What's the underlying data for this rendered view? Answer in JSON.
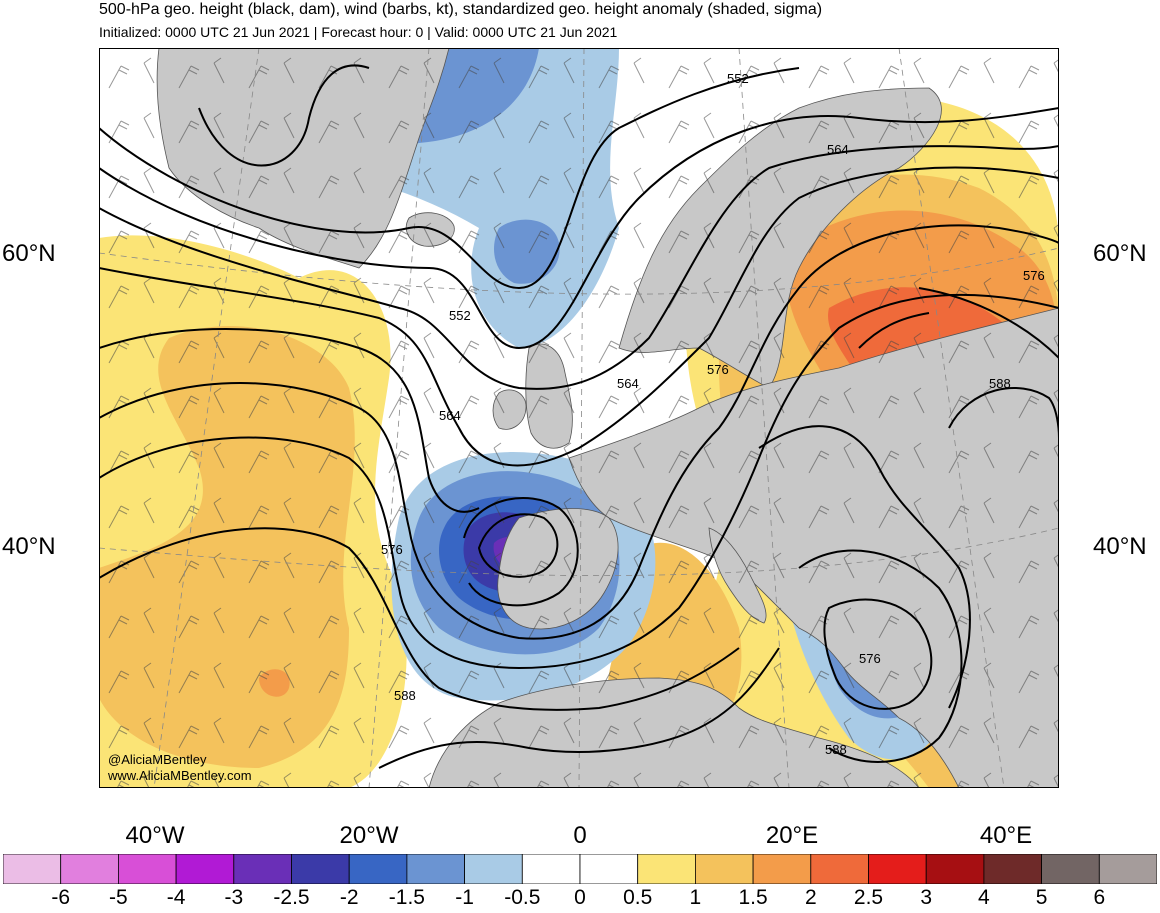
{
  "header": {
    "title": "500-hPa geo. height (black, dam), wind (barbs, kt), standardized geo. height anomaly (shaded, sigma)",
    "subtitle": "Initialized: 0000 UTC 21 Jun 2021 | Forecast hour: 0 | Valid: 0000 UTC 21 Jun 2021"
  },
  "map": {
    "lat_labels": [
      "60°N",
      "40°N"
    ],
    "lon_labels": [
      "40°W",
      "20°W",
      "0",
      "20°E",
      "40°E"
    ],
    "contour_labels": [
      "552",
      "552",
      "564",
      "564",
      "564",
      "576",
      "576",
      "576",
      "576",
      "588",
      "588",
      "588"
    ],
    "credits": [
      "@AliciaMBentley",
      "www.AliciaMBentley.com"
    ],
    "colors": {
      "land": "#c8c8c8",
      "contour": "#000000",
      "grid": "#888888"
    }
  },
  "colorbar": {
    "ticks": [
      "-6",
      "-5",
      "-4",
      "-3",
      "-2.5",
      "-2",
      "-1.5",
      "-1",
      "-0.5",
      "0",
      "0.5",
      "1",
      "1.5",
      "2",
      "2.5",
      "3",
      "4",
      "5",
      "6"
    ],
    "colors": [
      "#ebbde6",
      "#e17fde",
      "#d84fd7",
      "#b11ad5",
      "#6a2fb7",
      "#3b3aa8",
      "#3866c4",
      "#6b94d2",
      "#a9cbe6",
      "#ffffff",
      "#ffffff",
      "#fbe476",
      "#f4c25c",
      "#f39c4a",
      "#ef6a3a",
      "#e41d1b",
      "#a60f12",
      "#6e2a29",
      "#726564",
      "#a59c9b"
    ]
  }
}
